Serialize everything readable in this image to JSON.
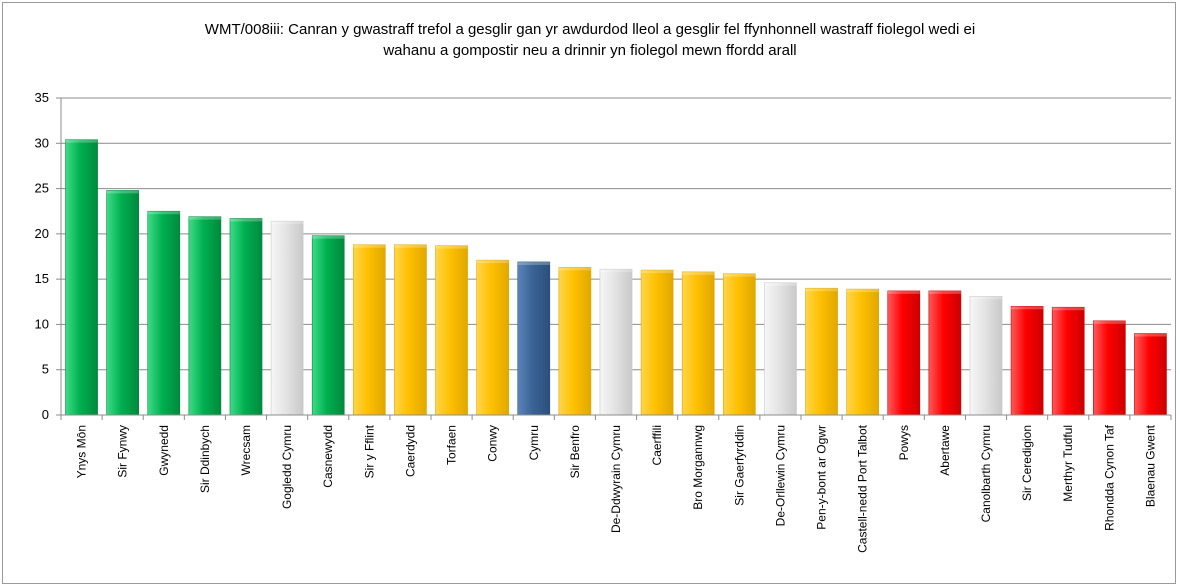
{
  "chart_data": {
    "type": "bar",
    "title_lines": [
      "WMT/008iii: Canran y gwastraff trefol a gesglir gan yr awdurdod lleol a gesglir fel ffynhonnell wastraff fiolegol wedi ei",
      "wahanu a gompostir neu a drinnir yn fiolegol mewn ffordd arall"
    ],
    "xlabel": "",
    "ylabel": "",
    "ylim": [
      0,
      35
    ],
    "yticks": [
      "0",
      "5",
      "10",
      "15",
      "20",
      "25",
      "30",
      "35"
    ],
    "grid": true,
    "categories": [
      "Ynys Môn",
      "Sir Fynwy",
      "Gwynedd",
      "Sir Ddinbych",
      "Wrecsam",
      "Gogledd Cymru",
      "Casnewydd",
      "Sir y Fflint",
      "Caerdydd",
      "Torfaen",
      "Conwy",
      "Cymru",
      "Sir Benfro",
      "De-Ddwyrain Cymru",
      "Caerffili",
      "Bro Morgannwg",
      "Sir Gaerfyrddin",
      "De-Orllewin Cymru",
      "Pen-y-bont ar Ogwr",
      "Castell-nedd Port Talbot",
      "Powys",
      "Abertawe",
      "Canolbarth Cymru",
      "Sir Ceredigion",
      "Merthyr Tudful",
      "Rhondda Cynon Taf",
      "Blaenau Gwent"
    ],
    "values": [
      30.4,
      24.8,
      22.5,
      21.9,
      21.7,
      21.4,
      19.8,
      18.8,
      18.8,
      18.7,
      17.1,
      16.9,
      16.3,
      16.1,
      16.0,
      15.8,
      15.6,
      14.6,
      14.0,
      13.9,
      13.7,
      13.7,
      13.1,
      12.0,
      11.9,
      10.4,
      9.0
    ],
    "bar_groups": [
      "green",
      "green",
      "green",
      "green",
      "green",
      "grey",
      "green",
      "yellow",
      "yellow",
      "yellow",
      "yellow",
      "blue",
      "yellow",
      "grey",
      "yellow",
      "yellow",
      "yellow",
      "grey",
      "yellow",
      "yellow",
      "red",
      "red",
      "grey",
      "red",
      "red",
      "red",
      "red"
    ],
    "colors": {
      "green": "#00b050",
      "yellow": "#ffc000",
      "red": "#ff0000",
      "blue": "#3a6496",
      "grey": "#e4e4e4"
    }
  }
}
